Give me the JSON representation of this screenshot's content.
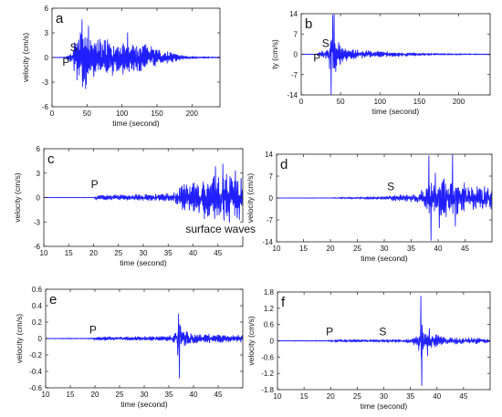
{
  "trace_color": "#1f1fff",
  "chart_data": [
    {
      "panel": "a",
      "type": "line",
      "xlabel": "time (second)",
      "ylabel": "velocity (cm/s)",
      "xlim": [
        0,
        240
      ],
      "ylim": [
        -6,
        6
      ],
      "xticks": [
        0,
        50,
        100,
        150,
        200
      ],
      "yticks": [
        -6,
        -3,
        0,
        3,
        6
      ],
      "yticklabels": [
        "-6",
        "-3",
        "0",
        "3",
        "6"
      ],
      "phases": [
        {
          "label": "P",
          "x": 20,
          "y": -1
        },
        {
          "label": "S",
          "x": 31,
          "y": 0.8
        }
      ],
      "annotations": [],
      "envelope": [
        [
          0,
          0.04
        ],
        [
          20,
          0.05
        ],
        [
          22,
          0.5
        ],
        [
          28,
          0.7
        ],
        [
          30,
          0.9
        ],
        [
          33,
          2.5
        ],
        [
          38,
          3.3
        ],
        [
          42,
          3.9
        ],
        [
          48,
          3.6
        ],
        [
          60,
          2.6
        ],
        [
          80,
          2.2
        ],
        [
          100,
          2.2
        ],
        [
          120,
          1.8
        ],
        [
          140,
          1.5
        ],
        [
          160,
          0.9
        ],
        [
          175,
          0.5
        ],
        [
          190,
          0.2
        ],
        [
          210,
          0.12
        ],
        [
          240,
          0.08
        ]
      ],
      "spikes": [
        [
          43,
          4.6
        ],
        [
          48,
          -3.8
        ],
        [
          52,
          3.8
        ],
        [
          45,
          -2.9
        ],
        [
          108,
          3.0
        ]
      ]
    },
    {
      "panel": "b",
      "type": "line",
      "xlabel": "time (second)",
      "ylabel": "ty (cm/s)",
      "xlim": [
        0,
        240
      ],
      "ylim": [
        -14,
        14
      ],
      "xticks": [
        0,
        50,
        100,
        150,
        200
      ],
      "yticks": [
        -14,
        -7,
        0,
        7,
        14
      ],
      "yticklabels": [
        "-14",
        "-7",
        "0",
        "7",
        "14"
      ],
      "phases": [
        {
          "label": "P",
          "x": 20,
          "y": -2.5
        },
        {
          "label": "S",
          "x": 31,
          "y": 2.5
        }
      ],
      "annotations": [],
      "envelope": [
        [
          0,
          0.05
        ],
        [
          20,
          0.1
        ],
        [
          22,
          1.2
        ],
        [
          30,
          1.5
        ],
        [
          34,
          2.0
        ],
        [
          38,
          5.5
        ],
        [
          42,
          7.5
        ],
        [
          46,
          5.5
        ],
        [
          52,
          2.8
        ],
        [
          70,
          1.6
        ],
        [
          100,
          1.0
        ],
        [
          140,
          0.6
        ],
        [
          180,
          0.3
        ],
        [
          240,
          0.15
        ]
      ],
      "spikes": [
        [
          38,
          -14
        ],
        [
          40,
          13.5
        ],
        [
          42,
          13.8
        ],
        [
          44,
          -6
        ],
        [
          36,
          -5
        ]
      ]
    },
    {
      "panel": "c",
      "type": "line",
      "xlabel": "time (second)",
      "ylabel": "velocity (cm/s)",
      "xlim": [
        10,
        50
      ],
      "ylim": [
        -6,
        6
      ],
      "xticks": [
        10,
        15,
        20,
        25,
        30,
        35,
        40,
        45
      ],
      "yticks": [
        -6,
        -3,
        0,
        3,
        6
      ],
      "yticklabels": [
        "-6",
        "-3",
        "0",
        "3",
        "6"
      ],
      "phases": [
        {
          "label": "P",
          "x": 20.2,
          "y": 1.2
        }
      ],
      "annotations": [
        {
          "label": "surface waves",
          "x": 38.5,
          "y": -4.3
        }
      ],
      "envelope": [
        [
          10,
          0.02
        ],
        [
          20,
          0.03
        ],
        [
          20.5,
          0.3
        ],
        [
          25,
          0.35
        ],
        [
          30,
          0.4
        ],
        [
          35,
          0.5
        ],
        [
          36.5,
          0.9
        ],
        [
          38,
          1.8
        ],
        [
          40,
          2.2
        ],
        [
          42,
          2.0
        ],
        [
          44,
          3.0
        ],
        [
          46,
          3.4
        ],
        [
          48,
          3.0
        ],
        [
          50,
          2.6
        ]
      ],
      "spikes": [
        [
          46,
          4.1
        ],
        [
          47.3,
          -3.8
        ],
        [
          48.5,
          3.3
        ],
        [
          44.5,
          3.8
        ],
        [
          42.3,
          -2.6
        ]
      ]
    },
    {
      "panel": "d",
      "type": "line",
      "xlabel": "time (second)",
      "ylabel": "velocity (cm/s)",
      "xlim": [
        10,
        50
      ],
      "ylim": [
        -14,
        14
      ],
      "xticks": [
        10,
        15,
        20,
        25,
        30,
        35,
        40,
        45
      ],
      "yticks": [
        -14,
        -7,
        0,
        7,
        14
      ],
      "yticklabels": [
        "-14",
        "-7",
        "0",
        "7",
        "14"
      ],
      "phases": [
        {
          "label": "S",
          "x": 31.2,
          "y": 2.5
        }
      ],
      "annotations": [],
      "envelope": [
        [
          10,
          0.05
        ],
        [
          20,
          0.08
        ],
        [
          22,
          0.3
        ],
        [
          30,
          0.5
        ],
        [
          32,
          1.0
        ],
        [
          36,
          1.5
        ],
        [
          38,
          4.0
        ],
        [
          40,
          6.0
        ],
        [
          42,
          6.5
        ],
        [
          44,
          5.5
        ],
        [
          46,
          5.0
        ],
        [
          48,
          4.5
        ],
        [
          50,
          3.5
        ]
      ],
      "spikes": [
        [
          38.3,
          13.5
        ],
        [
          38.7,
          -13.5
        ],
        [
          42.7,
          14
        ],
        [
          43.2,
          -9
        ],
        [
          40.2,
          -9.5
        ],
        [
          39.5,
          8
        ]
      ]
    },
    {
      "panel": "e",
      "type": "line",
      "xlabel": "time (second)",
      "ylabel": "velocity (cm/s)",
      "xlim": [
        10,
        50
      ],
      "ylim": [
        -0.6,
        0.6
      ],
      "xticks": [
        10,
        15,
        20,
        25,
        30,
        35,
        40,
        45
      ],
      "yticks": [
        -0.6,
        -0.4,
        -0.2,
        0,
        0.2,
        0.4,
        0.6
      ],
      "yticklabels": [
        "-0.6",
        "-0.4",
        "-0.2",
        "0",
        "0.2",
        "0.4",
        "0.6"
      ],
      "phases": [
        {
          "label": "P",
          "x": 19.6,
          "y": 0.06
        }
      ],
      "annotations": [],
      "envelope": [
        [
          10,
          0.004
        ],
        [
          19,
          0.006
        ],
        [
          20,
          0.02
        ],
        [
          25,
          0.025
        ],
        [
          30,
          0.025
        ],
        [
          35,
          0.03
        ],
        [
          36.2,
          0.08
        ],
        [
          38,
          0.1
        ],
        [
          40,
          0.06
        ],
        [
          45,
          0.05
        ],
        [
          50,
          0.05
        ]
      ],
      "spikes": [
        [
          37,
          0.3
        ],
        [
          37.15,
          -0.48
        ],
        [
          36.8,
          -0.2
        ],
        [
          37.4,
          0.15
        ]
      ]
    },
    {
      "panel": "f",
      "type": "line",
      "xlabel": "time (second)",
      "ylabel": "velocity (cm/s)",
      "xlim": [
        10,
        50
      ],
      "ylim": [
        -1.8,
        1.8
      ],
      "xticks": [
        10,
        15,
        20,
        25,
        30,
        35,
        40,
        45
      ],
      "yticks": [
        -1.8,
        -1.2,
        -0.6,
        0,
        0.6,
        1.2,
        1.8
      ],
      "yticklabels": [
        "-1.8",
        "-1.2",
        "-0.6",
        "0",
        "0.6",
        "1.2",
        "1.8"
      ],
      "phases": [
        {
          "label": "P",
          "x": 19.8,
          "y": 0.2
        },
        {
          "label": "S",
          "x": 29.8,
          "y": 0.2
        }
      ],
      "annotations": [],
      "envelope": [
        [
          10,
          0.01
        ],
        [
          19,
          0.02
        ],
        [
          20,
          0.05
        ],
        [
          30,
          0.06
        ],
        [
          35,
          0.08
        ],
        [
          36.2,
          0.25
        ],
        [
          37.5,
          0.4
        ],
        [
          39,
          0.3
        ],
        [
          41,
          0.15
        ],
        [
          45,
          0.12
        ],
        [
          50,
          0.1
        ]
      ],
      "spikes": [
        [
          36.95,
          1.65
        ],
        [
          37.15,
          -1.65
        ],
        [
          38.2,
          -0.55
        ],
        [
          38.6,
          0.45
        ],
        [
          36.6,
          -0.35
        ]
      ]
    }
  ]
}
